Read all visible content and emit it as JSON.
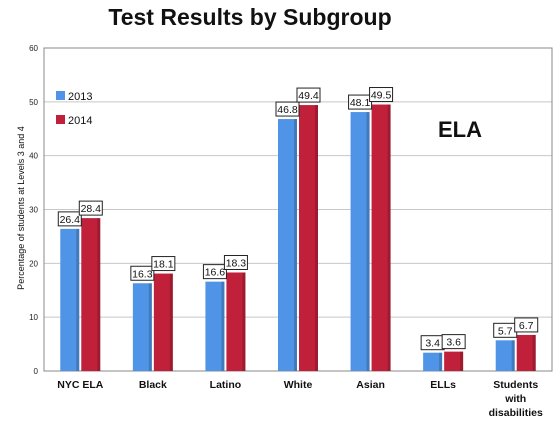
{
  "chart_data": {
    "type": "bar",
    "title": "Test Results by Subgroup",
    "ylabel": "Percentage of students at Levels 3 and 4",
    "xlabel": "",
    "ylim": [
      0,
      60
    ],
    "yticks": [
      0,
      10,
      20,
      30,
      40,
      50,
      60
    ],
    "grid": true,
    "legend_position": "top-left",
    "annotation": "ELA",
    "categories": [
      [
        "NYC ELA"
      ],
      [
        "Black"
      ],
      [
        "Latino"
      ],
      [
        "White"
      ],
      [
        "Asian"
      ],
      [
        "ELLs"
      ],
      [
        "Students",
        "with",
        "disabilities"
      ]
    ],
    "series": [
      {
        "name": "2013",
        "color": "#4f94e6",
        "values": [
          26.4,
          16.3,
          16.6,
          46.8,
          48.1,
          3.4,
          5.7
        ]
      },
      {
        "name": "2014",
        "color": "#c0203a",
        "values": [
          28.4,
          18.1,
          18.3,
          49.4,
          49.5,
          3.6,
          6.7
        ]
      }
    ]
  }
}
